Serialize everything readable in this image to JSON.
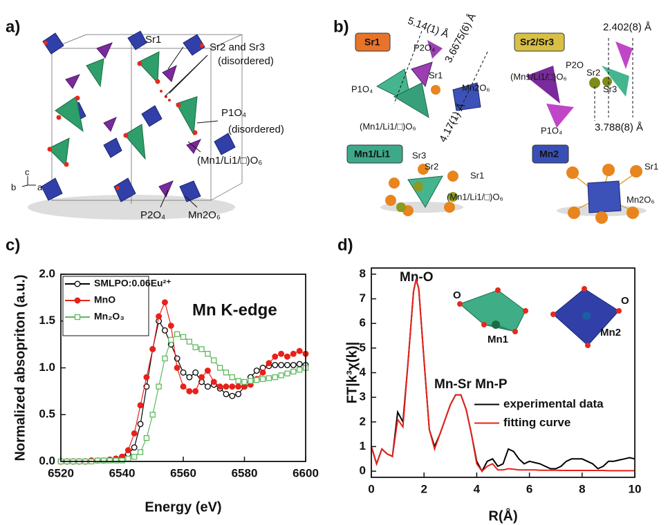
{
  "panel_labels": [
    "a)",
    "b)",
    "c)",
    "d)"
  ],
  "panel_a": {
    "labels": [
      "Sr1",
      "Sr2 and Sr3",
      "(disordered)",
      "P1O₄",
      "(disordered)",
      "(Mn1/Li1/□)O₆",
      "P2O₄",
      "Mn2O₆"
    ],
    "axes": [
      "c",
      "b",
      "a"
    ]
  },
  "panel_b": {
    "badges": [
      "Sr1",
      "Sr2/Sr3",
      "Mn1/Li1",
      "Mn2"
    ],
    "labels": [
      "5.14(1) Å",
      "3.6675(6) Å",
      "P2O₄",
      "Sr1",
      "P1O₄",
      "Mn2O₆",
      "(Mn1/Li1/□)O₆",
      "4.17(1) Å",
      "2.402(8) Å",
      "P2O",
      "(Mn1/Li1/□)O₆",
      "Sr2",
      "Sr3",
      "P1O₄",
      "3.788(8) Å",
      "Sr3",
      "Sr2",
      "Sr1",
      "(Mn1/Li1/□)O₆",
      "Sr1",
      "Mn2O₆"
    ]
  },
  "chart_data": [
    {
      "type": "line",
      "xlabel": "Energy (eV)",
      "ylabel": "Normalized absopriton (a.u.)",
      "annotations": [
        "Mn K-edge"
      ],
      "xlim": [
        6520,
        6600
      ],
      "xticks": [
        6520,
        6540,
        6560,
        6580,
        6600
      ],
      "ylim": [
        0,
        2
      ],
      "yticks": [
        {
          "value": 0,
          "label": "0.0"
        },
        {
          "value": 0.5,
          "label": "0.5"
        },
        {
          "value": 1,
          "label": "1.0"
        },
        {
          "value": 1.5,
          "label": "1.5"
        },
        {
          "value": 2,
          "label": "2.0"
        }
      ],
      "legend": "upper left",
      "x": [
        6520,
        6522,
        6524,
        6526,
        6528,
        6530,
        6532,
        6534,
        6536,
        6538,
        6540,
        6542,
        6544,
        6546,
        6548,
        6550,
        6552,
        6554,
        6556,
        6558,
        6560,
        6562,
        6564,
        6566,
        6568,
        6570,
        6572,
        6574,
        6576,
        6578,
        6580,
        6582,
        6584,
        6586,
        6588,
        6590,
        6592,
        6594,
        6596,
        6598,
        6600
      ],
      "series": [
        {
          "name": "SMLPO:0.06Eu²⁺",
          "color": "#000000",
          "marker": "circle-open",
          "values": [
            0,
            0,
            0,
            0,
            0,
            0.01,
            0.01,
            0.01,
            0.02,
            0.03,
            0.05,
            0.08,
            0.15,
            0.4,
            0.8,
            1.2,
            1.5,
            1.4,
            1.25,
            1.1,
            0.95,
            0.9,
            0.95,
            0.85,
            0.8,
            0.82,
            0.78,
            0.72,
            0.7,
            0.72,
            0.8,
            0.9,
            0.97,
            1.0,
            1.02,
            1.03,
            1.03,
            1.03,
            1.03,
            1.04,
            1.03
          ]
        },
        {
          "name": "MnO",
          "color": "#e8211a",
          "marker": "circle-filled",
          "values": [
            0,
            0,
            0,
            0,
            0,
            0.01,
            0.01,
            0.01,
            0.02,
            0.03,
            0.05,
            0.12,
            0.3,
            0.6,
            0.9,
            1.2,
            1.55,
            1.7,
            1.45,
            1.0,
            0.8,
            0.75,
            0.75,
            0.9,
            0.97,
            0.85,
            0.8,
            0.8,
            0.8,
            0.8,
            0.8,
            0.82,
            0.88,
            0.95,
            1.05,
            1.12,
            1.15,
            1.12,
            1.15,
            1.18,
            1.15
          ]
        },
        {
          "name": "Mn₂O₃",
          "color": "#5cb85c",
          "marker": "square-open",
          "values": [
            0,
            0,
            0,
            0,
            0,
            0,
            0.01,
            0.01,
            0.01,
            0.01,
            0.01,
            0.03,
            0.05,
            0.1,
            0.25,
            0.5,
            0.8,
            1.1,
            1.3,
            1.36,
            1.33,
            1.28,
            1.22,
            1.2,
            1.15,
            1.08,
            1.0,
            0.95,
            0.9,
            0.86,
            0.85,
            0.86,
            0.87,
            0.88,
            0.89,
            0.9,
            0.92,
            0.94,
            0.96,
            0.98,
            1.0
          ]
        }
      ]
    },
    {
      "type": "line",
      "xlabel": "R(Å)",
      "ylabel": "FT|k³χ(k)|",
      "annotations": [
        "Mn-O",
        "Mn-Sr Mn-P"
      ],
      "inset_labels": [
        "O",
        "Mn1",
        "O",
        "Mn2"
      ],
      "xlim": [
        0,
        10
      ],
      "xticks": [
        0,
        2,
        4,
        6,
        8,
        10
      ],
      "ylim": [
        -0.25,
        8.25
      ],
      "yticks": [
        0,
        1,
        2,
        3,
        4,
        5,
        6,
        7,
        8
      ],
      "legend": "center right",
      "x": [
        0,
        0.2,
        0.4,
        0.6,
        0.8,
        1.0,
        1.2,
        1.4,
        1.6,
        1.7,
        1.8,
        2.0,
        2.2,
        2.4,
        2.6,
        2.8,
        3.0,
        3.2,
        3.4,
        3.6,
        3.8,
        4.0,
        4.2,
        4.4,
        4.6,
        4.8,
        5.0,
        5.2,
        5.4,
        5.6,
        5.8,
        6.0,
        6.2,
        6.4,
        6.6,
        6.8,
        7.0,
        7.2,
        7.4,
        7.6,
        7.8,
        8.0,
        8.2,
        8.4,
        8.6,
        8.8,
        9.0,
        9.2,
        9.4,
        9.6,
        9.8,
        10.0
      ],
      "series": [
        {
          "name": "experimental data",
          "color": "#000000",
          "values": [
            1.0,
            0.3,
            0.9,
            0.7,
            0.6,
            2.4,
            2.0,
            4.5,
            7.3,
            7.8,
            7.4,
            4.5,
            1.7,
            1.0,
            1.5,
            2.1,
            2.7,
            3.1,
            3.1,
            2.5,
            1.5,
            0.4,
            0.0,
            0.4,
            0.5,
            0.2,
            0.3,
            0.9,
            0.8,
            0.5,
            0.3,
            0.4,
            0.35,
            0.3,
            0.2,
            0.1,
            0.1,
            0.2,
            0.4,
            0.5,
            0.5,
            0.5,
            0.4,
            0.3,
            0.1,
            0.2,
            0.4,
            0.4,
            0.45,
            0.5,
            0.55,
            0.5
          ]
        },
        {
          "name": "fitting curve",
          "color": "#e8211a",
          "values": [
            1.0,
            0.3,
            0.9,
            0.7,
            0.6,
            2.1,
            1.8,
            4.5,
            7.3,
            7.8,
            7.4,
            4.5,
            1.7,
            0.9,
            1.5,
            2.1,
            2.7,
            3.1,
            3.1,
            2.5,
            1.5,
            0.3,
            0.0,
            0.2,
            0.3,
            0.05,
            0.05,
            0.1,
            0.08,
            0.05,
            0.05,
            0.05,
            0.05,
            0.04,
            0.04,
            0.04,
            0.04,
            0.03,
            0.03,
            0.03,
            0.03,
            0.03,
            0.03,
            0.03,
            0.03,
            0.03,
            0.02,
            0.02,
            0.02,
            0.02,
            0.02,
            0.02
          ]
        }
      ]
    }
  ]
}
